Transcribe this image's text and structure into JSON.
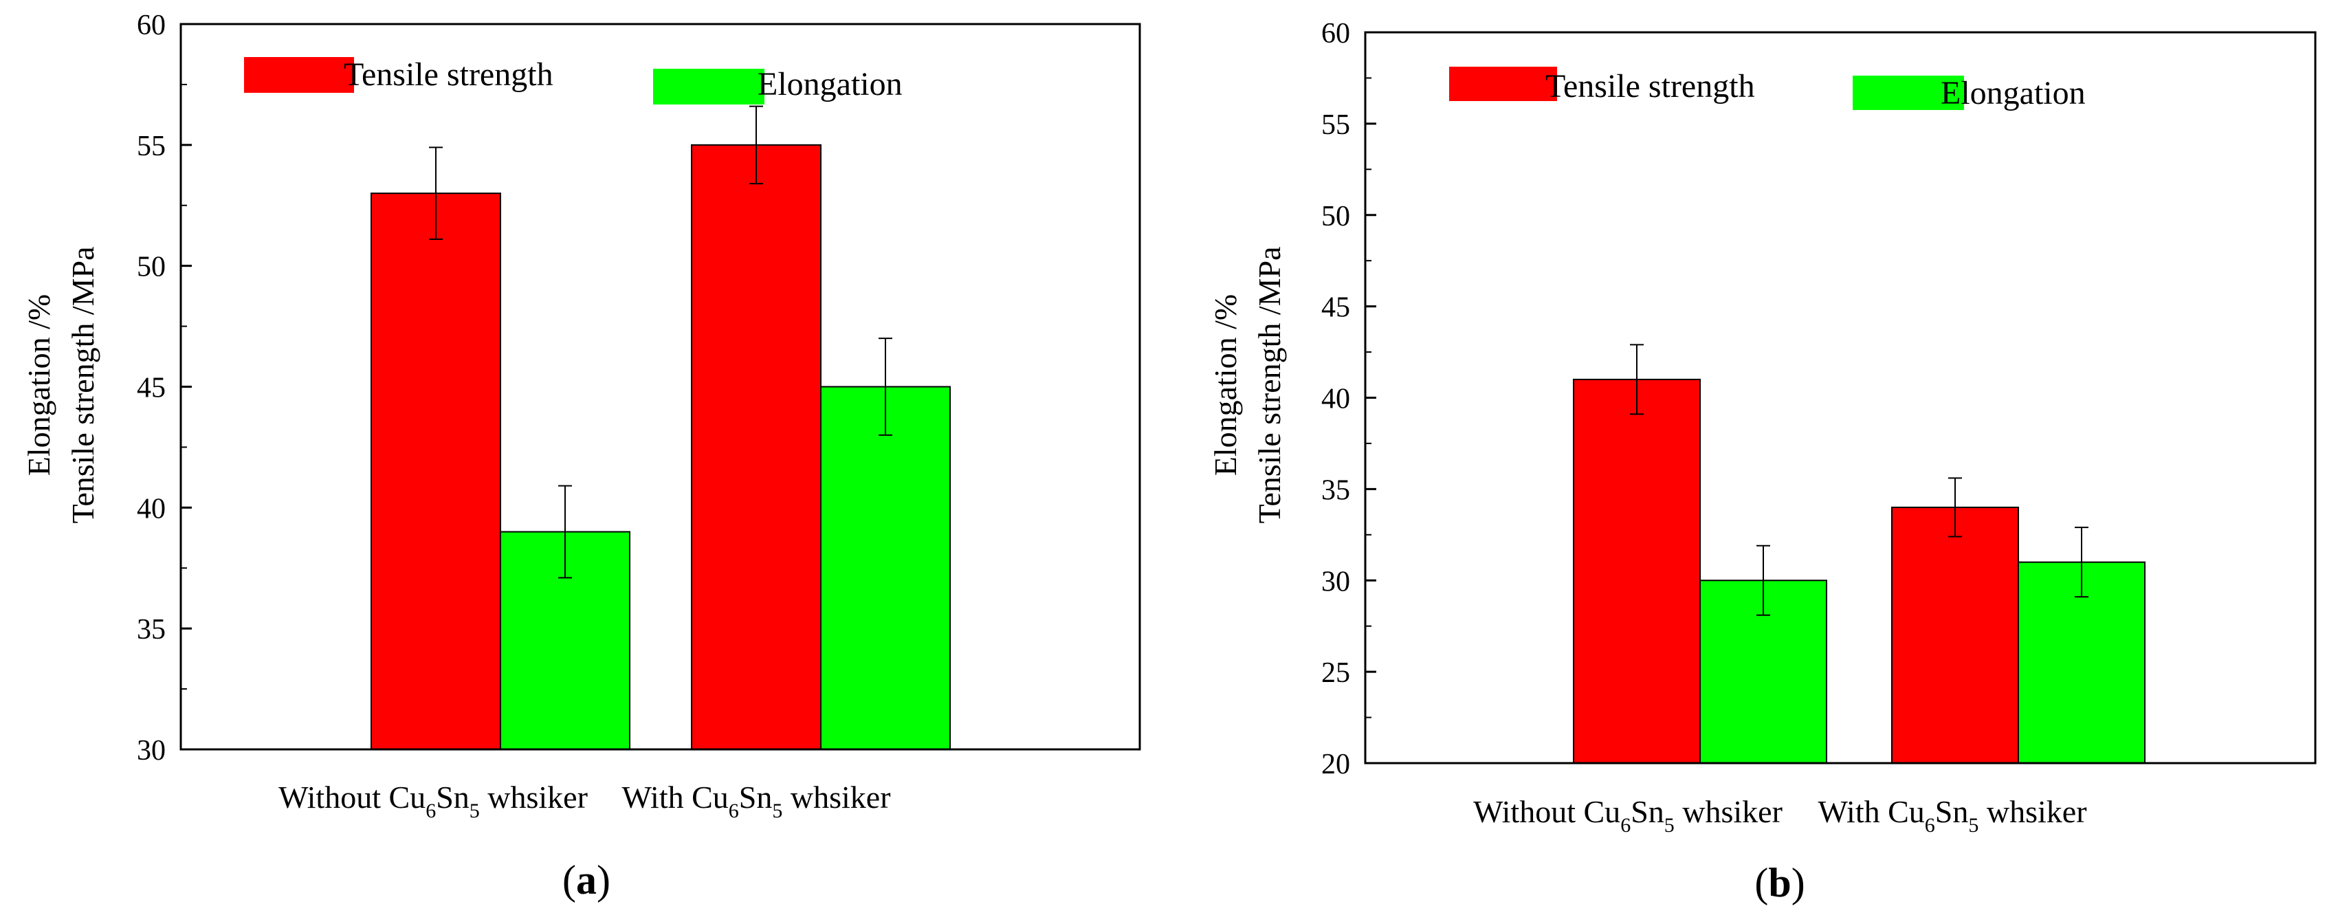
{
  "chart_data": [
    {
      "type": "bar",
      "panel_label": "(a)",
      "panel_letter": "a",
      "categories": [
        "Without Cu6Sn5 whsiker",
        "With Cu6Sn5 whsiker"
      ],
      "category_parts": [
        {
          "pre": "Without Cu",
          "sub1": "6",
          "mid": "Sn",
          "sub2": "5",
          "post": " whsiker"
        },
        {
          "pre": "With Cu",
          "sub1": "6",
          "mid": "Sn",
          "sub2": "5",
          "post": " whsiker"
        }
      ],
      "series": [
        {
          "name": "Tensile strength",
          "color": "#ff0000",
          "values": [
            53,
            55
          ],
          "errors": [
            1.9,
            1.6
          ]
        },
        {
          "name": "Elongation",
          "color": "#00ff00",
          "values": [
            39,
            45
          ],
          "errors": [
            1.9,
            2.0
          ]
        }
      ],
      "ylabel_line1": "Elongation /%",
      "ylabel_line2": "Tensile strength /MPa",
      "ylim": [
        30,
        60
      ],
      "yticks": [
        30,
        35,
        40,
        45,
        50,
        55,
        60
      ],
      "legend_position": "top-left, horizontal"
    },
    {
      "type": "bar",
      "panel_label": "(b)",
      "panel_letter": "b",
      "categories": [
        "Without Cu6Sn5 whsiker",
        "With Cu6Sn5 whsiker"
      ],
      "category_parts": [
        {
          "pre": "Without Cu",
          "sub1": "6",
          "mid": "Sn",
          "sub2": "5",
          "post": " whsiker"
        },
        {
          "pre": "With Cu",
          "sub1": "6",
          "mid": "Sn",
          "sub2": "5",
          "post": " whsiker"
        }
      ],
      "series": [
        {
          "name": "Tensile strength",
          "color": "#ff0000",
          "values": [
            41,
            34
          ],
          "errors": [
            1.9,
            1.6
          ]
        },
        {
          "name": "Elongation",
          "color": "#00ff00",
          "values": [
            30,
            31
          ],
          "errors": [
            1.9,
            1.9
          ]
        }
      ],
      "ylabel_line1": "Elongation /%",
      "ylabel_line2": "Tensile strength /MPa",
      "ylim": [
        20,
        60
      ],
      "yticks": [
        20,
        25,
        30,
        35,
        40,
        45,
        50,
        55,
        60
      ],
      "legend_position": "top-left, horizontal"
    }
  ]
}
